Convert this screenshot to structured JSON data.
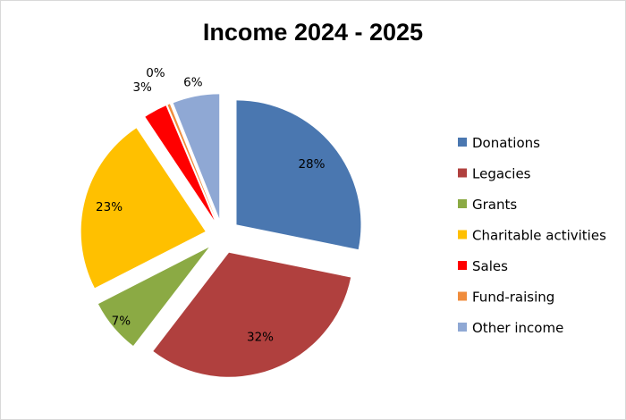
{
  "chart_data": {
    "type": "pie",
    "title": "Income 2024 - 2025",
    "exploded": true,
    "start_angle": "12 o'clock, clockwise",
    "legend_position": "right",
    "slices": [
      {
        "name": "Donations",
        "value": 28,
        "label": "28%",
        "color": "#4A77B0"
      },
      {
        "name": "Legacies",
        "value": 32,
        "label": "32%",
        "color": "#B0403E"
      },
      {
        "name": "Grants",
        "value": 7,
        "label": "7%",
        "color": "#8BAA44"
      },
      {
        "name": "Charitable activities",
        "value": 23,
        "label": "23%",
        "color": "#FFC000"
      },
      {
        "name": "Sales",
        "value": 3,
        "label": "3%",
        "color": "#FF0000"
      },
      {
        "name": "Fund-raising",
        "value": 0.3,
        "label": "0%",
        "color": "#F08C3C"
      },
      {
        "name": "Other income",
        "value": 6,
        "label": "6%",
        "color": "#8FA8D4"
      }
    ]
  }
}
